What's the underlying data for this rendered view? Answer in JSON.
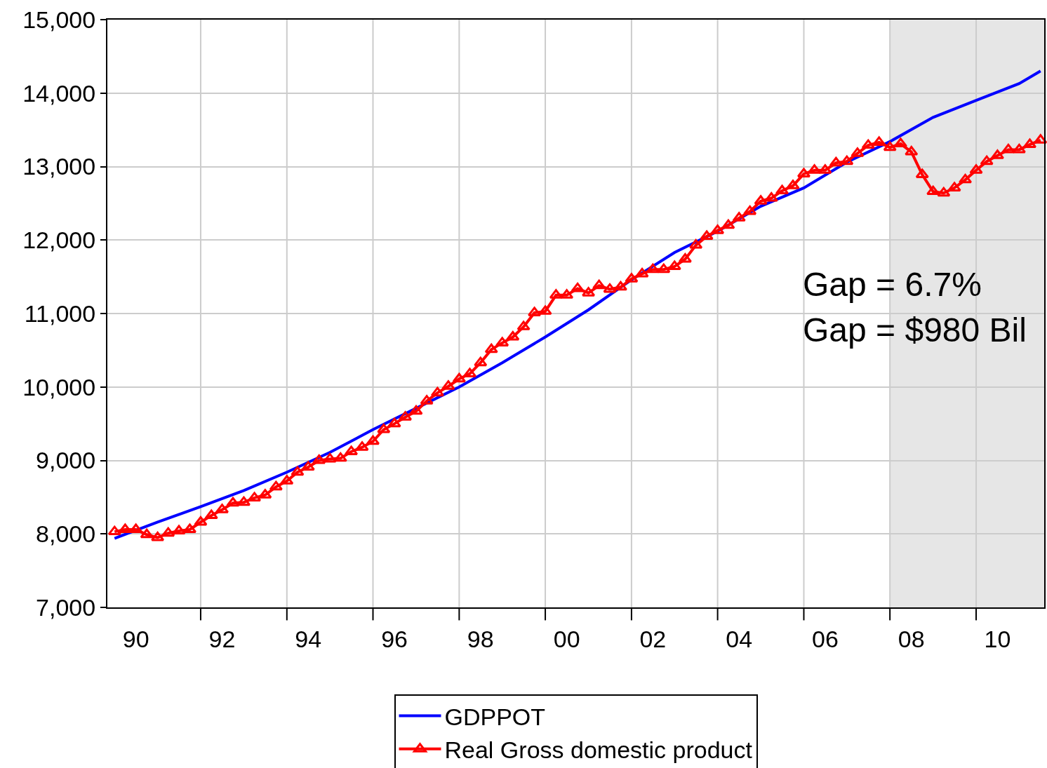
{
  "chart_data": {
    "type": "line",
    "x": [
      "1990-01",
      "1990-04",
      "1990-07",
      "1990-10",
      "1991-01",
      "1991-04",
      "1991-07",
      "1991-10",
      "1992-01",
      "1992-04",
      "1992-07",
      "1992-10",
      "1993-01",
      "1993-04",
      "1993-07",
      "1993-10",
      "1994-01",
      "1994-04",
      "1994-07",
      "1994-10",
      "1995-01",
      "1995-04",
      "1995-07",
      "1995-10",
      "1996-01",
      "1996-04",
      "1996-07",
      "1996-10",
      "1997-01",
      "1997-04",
      "1997-07",
      "1997-10",
      "1998-01",
      "1998-04",
      "1998-07",
      "1998-10",
      "1999-01",
      "1999-04",
      "1999-07",
      "1999-10",
      "2000-01",
      "2000-04",
      "2000-07",
      "2000-10",
      "2001-01",
      "2001-04",
      "2001-07",
      "2001-10",
      "2002-01",
      "2002-04",
      "2002-07",
      "2002-10",
      "2003-01",
      "2003-04",
      "2003-07",
      "2003-10",
      "2004-01",
      "2004-04",
      "2004-07",
      "2004-10",
      "2005-01",
      "2005-04",
      "2005-07",
      "2005-10",
      "2006-01",
      "2006-04",
      "2006-07",
      "2006-10",
      "2007-01",
      "2007-04",
      "2007-07",
      "2007-10",
      "2008-01",
      "2008-04",
      "2008-07",
      "2008-10",
      "2009-01",
      "2009-04",
      "2009-07",
      "2009-10",
      "2010-01",
      "2010-04",
      "2010-07",
      "2010-10",
      "2011-01",
      "2011-04",
      "2011-07"
    ],
    "series": [
      {
        "name": "GDPPOT",
        "color": "#0000ff",
        "marker": "none",
        "x": [
          "1990-01",
          "1991-01",
          "1992-01",
          "1993-01",
          "1994-01",
          "1995-01",
          "1996-01",
          "1997-01",
          "1998-01",
          "1999-01",
          "2000-01",
          "2001-01",
          "2002-01",
          "2003-01",
          "2004-01",
          "2005-01",
          "2006-01",
          "2007-01",
          "2008-01",
          "2009-01",
          "2010-01",
          "2011-01",
          "2011-07"
        ],
        "values": [
          7940,
          8160,
          8370,
          8590,
          8840,
          9110,
          9420,
          9710,
          10000,
          10330,
          10680,
          11050,
          11460,
          11830,
          12120,
          12460,
          12710,
          13060,
          13340,
          13670,
          13900,
          14130,
          14300
        ]
      },
      {
        "name": "Real Gross domestic product",
        "color": "#ff0000",
        "marker": "triangle",
        "values": [
          8030,
          8060,
          8060,
          7990,
          7950,
          8010,
          8040,
          8060,
          8160,
          8250,
          8330,
          8420,
          8430,
          8490,
          8530,
          8640,
          8720,
          8840,
          8910,
          9000,
          9020,
          9030,
          9120,
          9180,
          9260,
          9420,
          9500,
          9590,
          9670,
          9810,
          9920,
          10010,
          10110,
          10180,
          10330,
          10510,
          10600,
          10680,
          10820,
          11010,
          11030,
          11250,
          11250,
          11340,
          11280,
          11380,
          11330,
          11360,
          11470,
          11540,
          11600,
          11600,
          11640,
          11740,
          11930,
          12050,
          12130,
          12200,
          12300,
          12390,
          12530,
          12570,
          12670,
          12740,
          12900,
          12950,
          12950,
          13050,
          13070,
          13180,
          13290,
          13330,
          13260,
          13310,
          13200,
          12890,
          12660,
          12640,
          12710,
          12820,
          12950,
          13070,
          13150,
          13230,
          13230,
          13300,
          13360
        ]
      }
    ],
    "xlim": [
      "1989-11",
      "2011-08"
    ],
    "xticks": [
      {
        "value": "1990-07",
        "label": "90"
      },
      {
        "value": "1992-07",
        "label": "92"
      },
      {
        "value": "1994-07",
        "label": "94"
      },
      {
        "value": "1996-07",
        "label": "96"
      },
      {
        "value": "1998-07",
        "label": "98"
      },
      {
        "value": "2000-07",
        "label": "00"
      },
      {
        "value": "2002-07",
        "label": "02"
      },
      {
        "value": "2004-07",
        "label": "04"
      },
      {
        "value": "2006-07",
        "label": "06"
      },
      {
        "value": "2008-07",
        "label": "08"
      },
      {
        "value": "2010-07",
        "label": "10"
      },
      {
        "value": "1992-01",
        "label": null
      },
      {
        "value": "1994-01",
        "label": null
      },
      {
        "value": "1996-01",
        "label": null
      },
      {
        "value": "1998-01",
        "label": null
      },
      {
        "value": "2000-01",
        "label": null
      },
      {
        "value": "2002-01",
        "label": null
      },
      {
        "value": "2004-01",
        "label": null
      },
      {
        "value": "2006-01",
        "label": null
      },
      {
        "value": "2008-01",
        "label": null
      },
      {
        "value": "2010-01",
        "label": null
      }
    ],
    "ylim": [
      7000,
      15000
    ],
    "yticks": [
      {
        "value": 7000,
        "label": "7,000"
      },
      {
        "value": 8000,
        "label": "8,000"
      },
      {
        "value": 9000,
        "label": "9,000"
      },
      {
        "value": 10000,
        "label": "10,000"
      },
      {
        "value": 11000,
        "label": "11,000"
      },
      {
        "value": 12000,
        "label": "12,000"
      },
      {
        "value": 13000,
        "label": "13,000"
      },
      {
        "value": 14000,
        "label": "14,000"
      },
      {
        "value": 15000,
        "label": "15,000"
      }
    ],
    "bands": [
      {
        "axis": "x",
        "from": "2008-01",
        "to": "2011-08",
        "color": "#e6e6e6"
      }
    ],
    "annotations": [
      "Gap = 6.7%",
      "Gap = $980 Bil"
    ],
    "grid": true,
    "legend": "bottom"
  }
}
